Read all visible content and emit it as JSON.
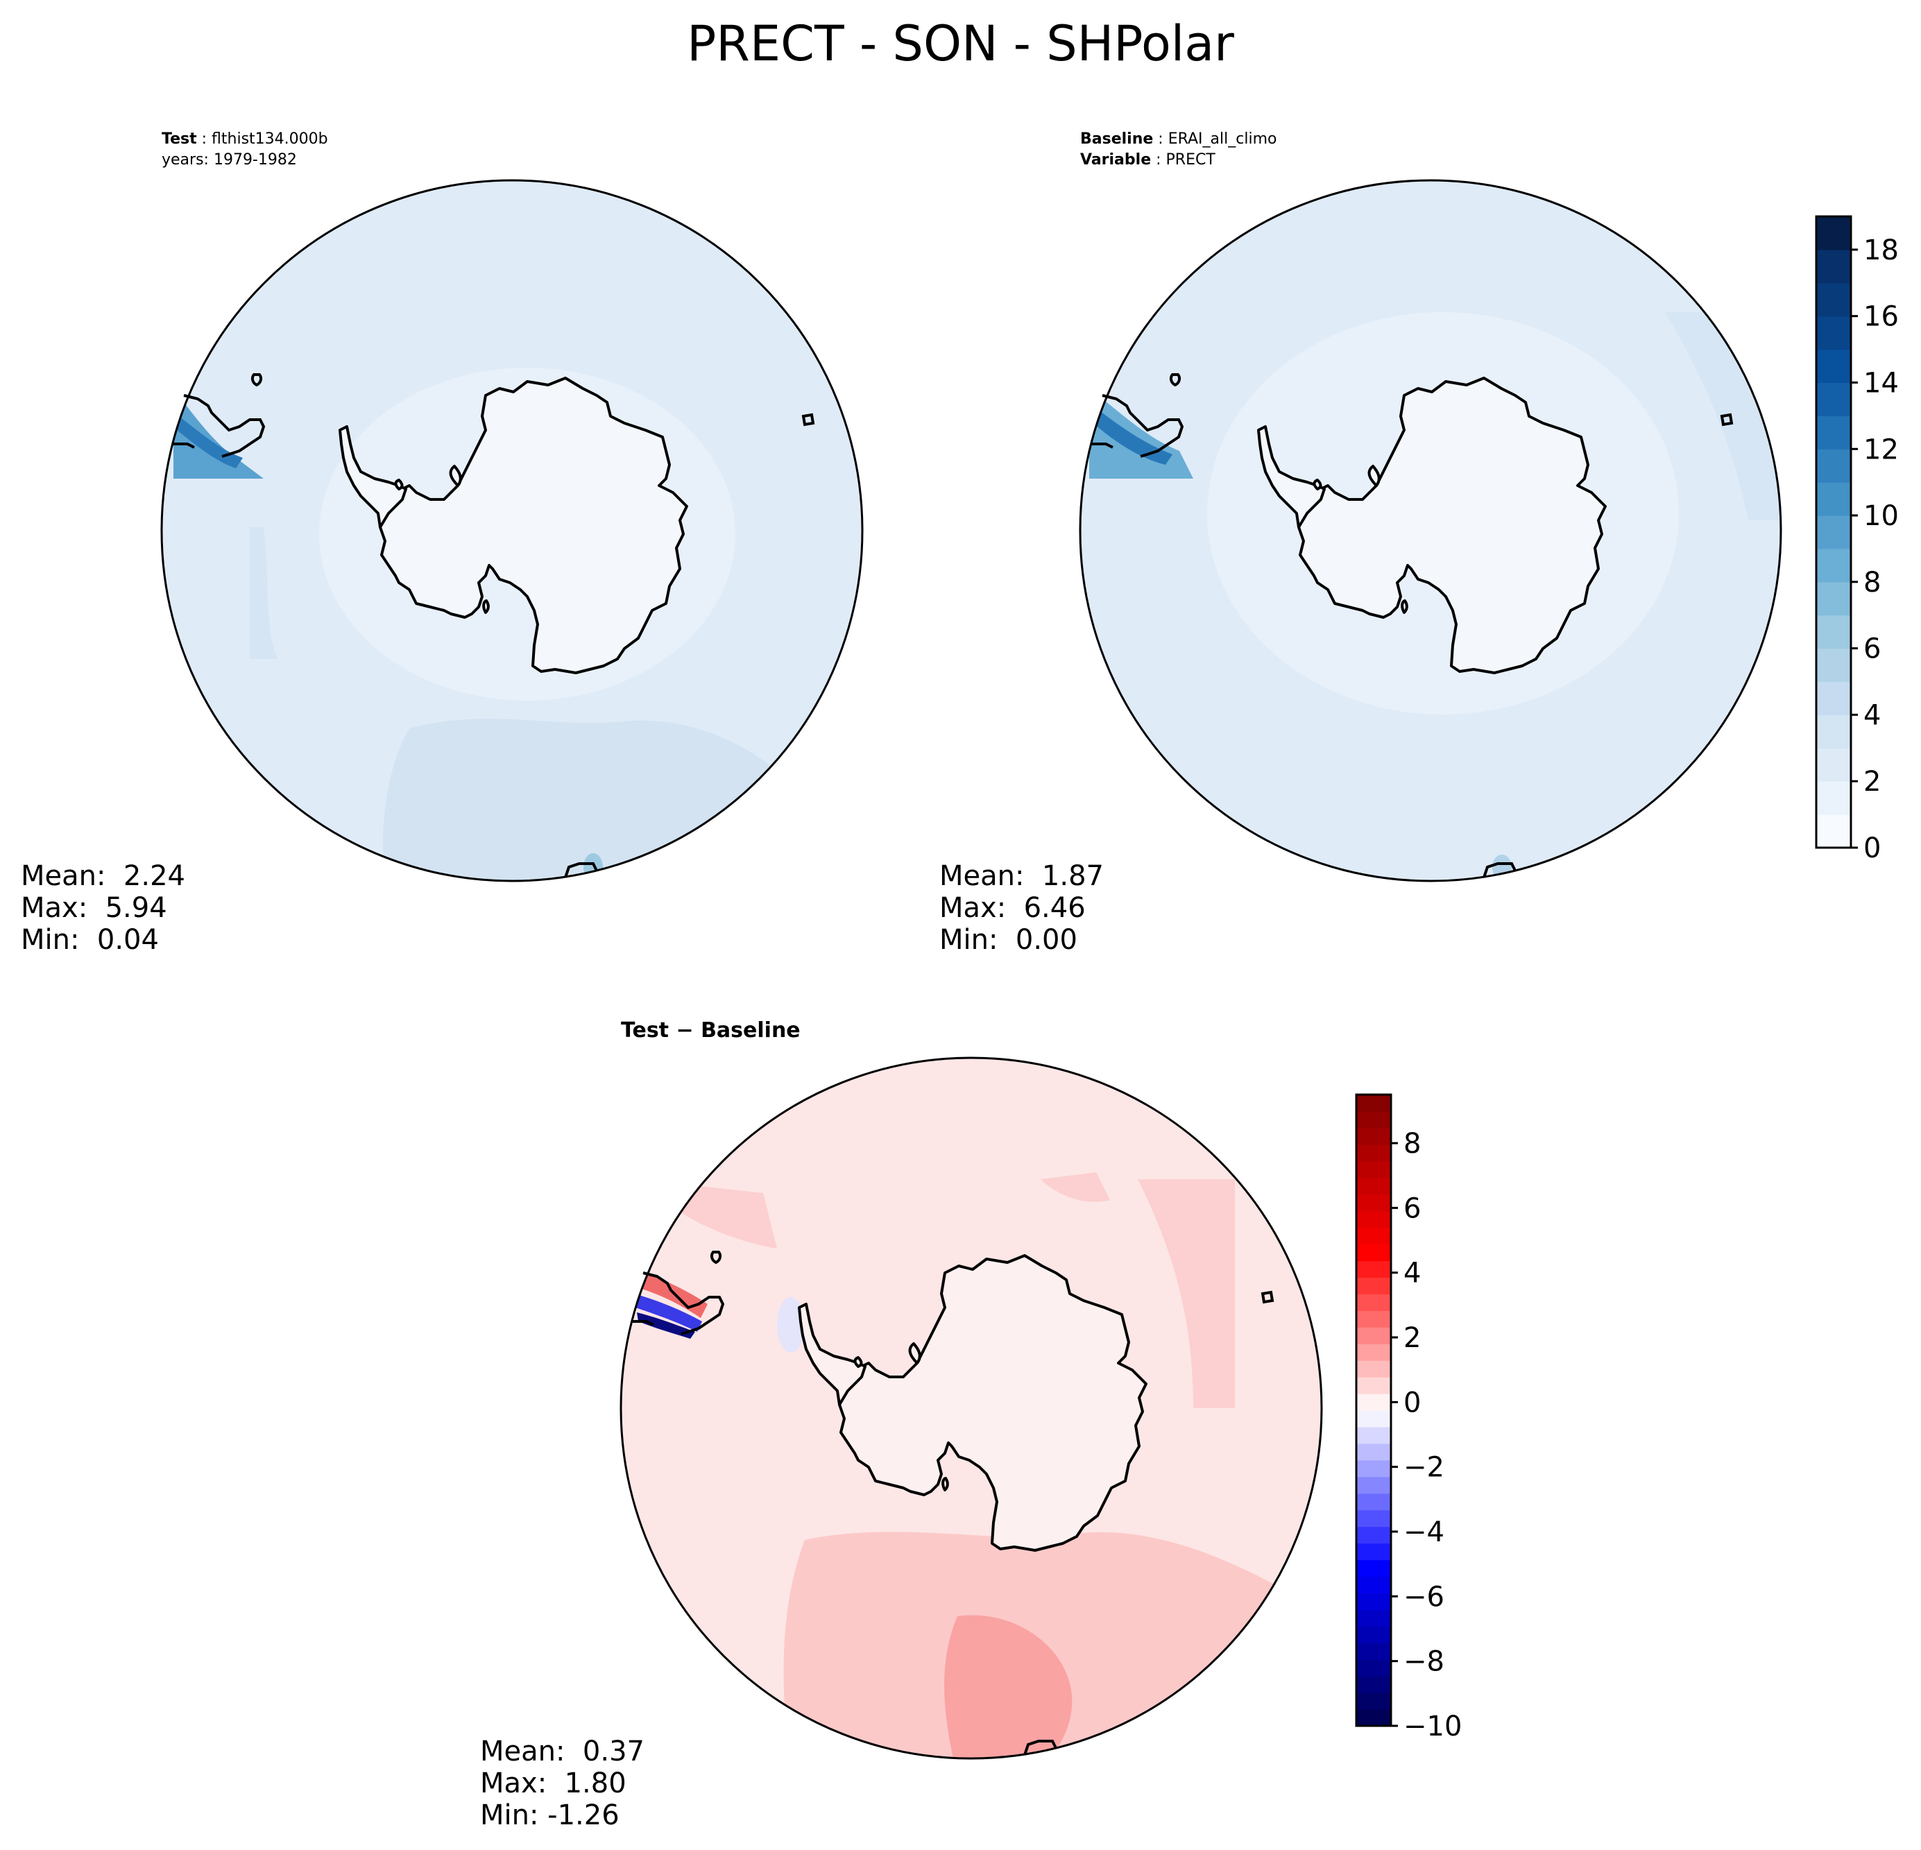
{
  "title": "PRECT - SON - SHPolar",
  "panels": {
    "test": {
      "label": "Test",
      "name": "flthist134.000b",
      "years": "years: 1979-1982",
      "stats": {
        "mean_label": "Mean:",
        "mean": "2.24",
        "max_label": "Max:",
        "max": "5.94",
        "min_label": "Min:",
        "min": "0.04"
      }
    },
    "baseline": {
      "label": "Baseline",
      "name": "ERAI_all_climo",
      "variable_label": "Variable",
      "variable": "PRECT",
      "stats": {
        "mean_label": "Mean:",
        "mean": "1.87",
        "max_label": "Max:",
        "max": "6.46",
        "min_label": "Min:",
        "min": "0.00"
      }
    },
    "diff": {
      "title_test": "Test",
      "title_sep": " − ",
      "title_base": "Baseline",
      "stats": {
        "mean_label": "Mean:",
        "mean": "0.37",
        "max_label": "Max:",
        "max": "1.80",
        "min_label": "Min:",
        "min": "-1.26"
      }
    }
  },
  "chart_data": [
    {
      "type": "heatmap",
      "panel": "Test",
      "projection": "south-polar-stereographic",
      "colormap": "Blues",
      "colorbar_shared_with": "Baseline",
      "stats": {
        "mean": 2.24,
        "max": 5.94,
        "min": 0.04
      }
    },
    {
      "type": "heatmap",
      "panel": "Baseline",
      "projection": "south-polar-stereographic",
      "colormap": "Blues",
      "stats": {
        "mean": 1.87,
        "max": 6.46,
        "min": 0.0
      },
      "colorbar": {
        "range": [
          0,
          19
        ],
        "levels": 19,
        "ticks": [
          0,
          2,
          4,
          6,
          8,
          10,
          12,
          14,
          16,
          18
        ],
        "tick_labels": [
          "0",
          "2",
          "4",
          "6",
          "8",
          "10",
          "12",
          "14",
          "16",
          "18"
        ],
        "colors": [
          "#f7fbff",
          "#eaf3fb",
          "#deebf7",
          "#d3e4f3",
          "#c6dbef",
          "#b1d2e7",
          "#9ecae1",
          "#84bcdb",
          "#6baed6",
          "#57a0ce",
          "#4292c6",
          "#3282be",
          "#2171b5",
          "#1460a8",
          "#08519c",
          "#08458a",
          "#083b7a",
          "#08306b",
          "#061f4a"
        ]
      }
    },
    {
      "type": "heatmap",
      "panel": "Test − Baseline",
      "projection": "south-polar-stereographic",
      "colormap": "seismic",
      "stats": {
        "mean": 0.37,
        "max": 1.8,
        "min": -1.26
      },
      "colorbar": {
        "range": [
          -10,
          9.5
        ],
        "ticks": [
          -10,
          -8,
          -6,
          -4,
          -2,
          0,
          2,
          4,
          6,
          8
        ],
        "tick_labels": [
          "−10",
          "−8",
          "−6",
          "−4",
          "−2",
          "0",
          "2",
          "4",
          "6",
          "8"
        ]
      }
    }
  ]
}
